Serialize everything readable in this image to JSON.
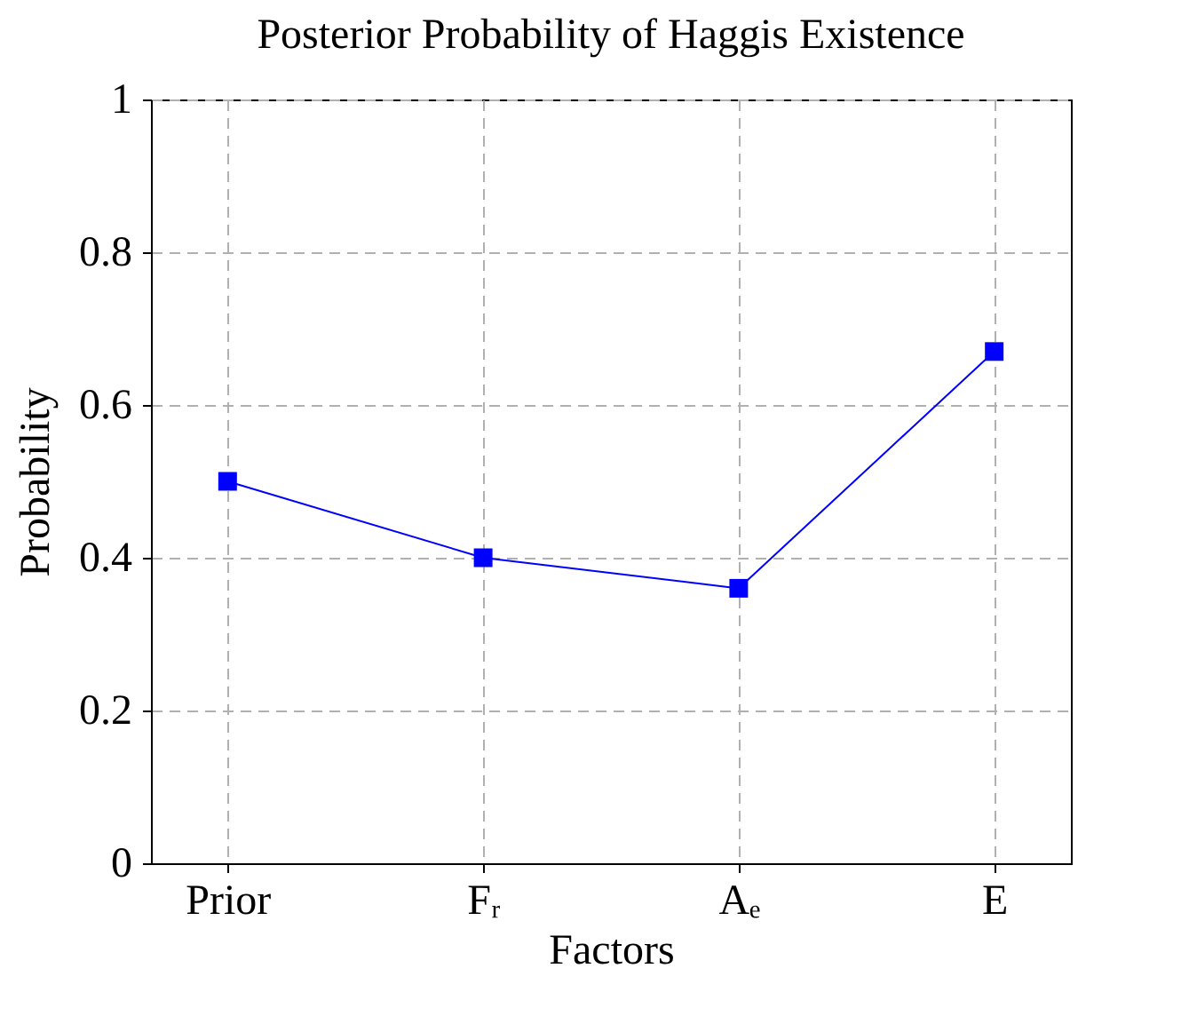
{
  "chart_data": {
    "type": "line",
    "title": "Posterior Probability of Haggis Existence",
    "xlabel": "Factors",
    "ylabel": "Probability",
    "categories": [
      "Prior",
      "Fᵣ",
      "Aₑ",
      "E"
    ],
    "series": [
      {
        "color": "#0000ff",
        "values": [
          0.5,
          0.4,
          0.36,
          0.67
        ]
      }
    ],
    "ylim": [
      0,
      1
    ],
    "yticks": [
      0,
      0.2,
      0.4,
      0.6,
      0.8,
      1
    ],
    "grid": true,
    "marker": "square",
    "line_style": "solid",
    "legend": false
  }
}
